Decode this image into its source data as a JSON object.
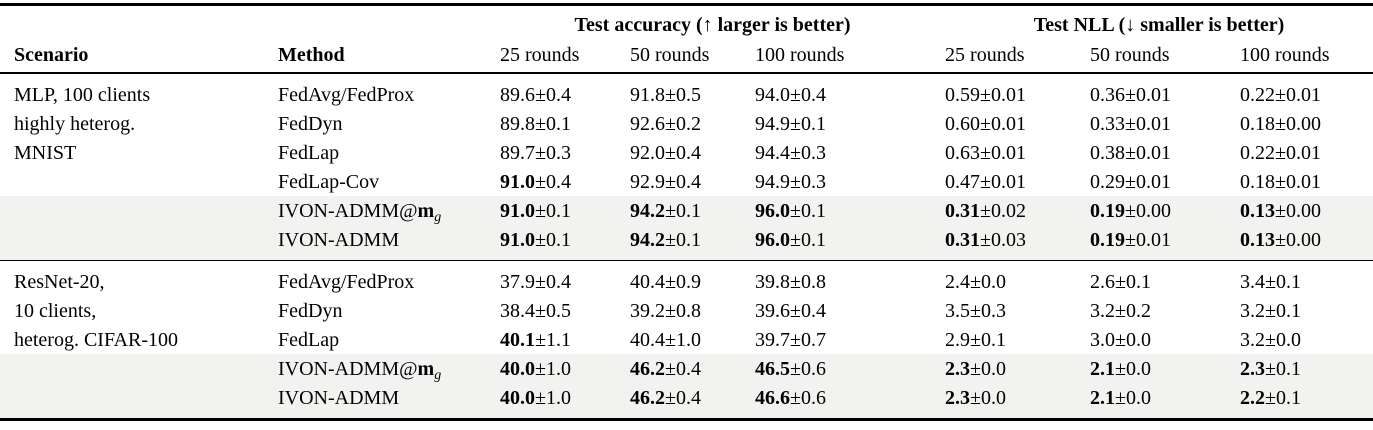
{
  "page": {
    "background": "#ffffff",
    "text_color": "#000000",
    "highlight_color": "#f2f2f1"
  },
  "table": {
    "headers": {
      "scenario": "Scenario",
      "method": "Method",
      "groups": [
        {
          "label": "Test accuracy (↑ larger is better)"
        },
        {
          "label": "Test NLL (↓ smaller is better)"
        }
      ],
      "round_cols": [
        "25 rounds",
        "50 rounds",
        "100 rounds",
        "25 rounds",
        "50 rounds",
        "100 rounds"
      ]
    },
    "blocks": [
      {
        "scenario_lines": [
          "MLP, 100 clients",
          "highly heterog.",
          "MNIST"
        ],
        "rows": [
          {
            "method": {
              "text": "FedAvg/FedProx"
            },
            "highlight": false,
            "cells": [
              {
                "v": "89.6",
                "pm": "±0.4",
                "b": false
              },
              {
                "v": "91.8",
                "pm": "±0.5",
                "b": false
              },
              {
                "v": "94.0",
                "pm": "±0.4",
                "b": false
              },
              {
                "v": "0.59",
                "pm": "±0.01",
                "b": false
              },
              {
                "v": "0.36",
                "pm": "±0.01",
                "b": false
              },
              {
                "v": "0.22",
                "pm": "±0.01",
                "b": false
              }
            ]
          },
          {
            "method": {
              "text": "FedDyn"
            },
            "highlight": false,
            "cells": [
              {
                "v": "89.8",
                "pm": "±0.1",
                "b": false
              },
              {
                "v": "92.6",
                "pm": "±0.2",
                "b": false
              },
              {
                "v": "94.9",
                "pm": "±0.1",
                "b": false
              },
              {
                "v": "0.60",
                "pm": "±0.01",
                "b": false
              },
              {
                "v": "0.33",
                "pm": "±0.01",
                "b": false
              },
              {
                "v": "0.18",
                "pm": "±0.00",
                "b": false
              }
            ]
          },
          {
            "method": {
              "text": "FedLap"
            },
            "highlight": false,
            "cells": [
              {
                "v": "89.7",
                "pm": "±0.3",
                "b": false
              },
              {
                "v": "92.0",
                "pm": "±0.4",
                "b": false
              },
              {
                "v": "94.4",
                "pm": "±0.3",
                "b": false
              },
              {
                "v": "0.63",
                "pm": "±0.01",
                "b": false
              },
              {
                "v": "0.38",
                "pm": "±0.01",
                "b": false
              },
              {
                "v": "0.22",
                "pm": "±0.01",
                "b": false
              }
            ]
          },
          {
            "method": {
              "text": "FedLap-Cov"
            },
            "highlight": false,
            "cells": [
              {
                "v": "91.0",
                "pm": "±0.4",
                "b": true
              },
              {
                "v": "92.9",
                "pm": "±0.4",
                "b": false
              },
              {
                "v": "94.9",
                "pm": "±0.3",
                "b": false
              },
              {
                "v": "0.47",
                "pm": "±0.01",
                "b": false
              },
              {
                "v": "0.29",
                "pm": "±0.01",
                "b": false
              },
              {
                "v": "0.18",
                "pm": "±0.01",
                "b": false
              }
            ]
          },
          {
            "method": {
              "text": "IVON-ADMM@",
              "math": "m",
              "sub": "g"
            },
            "highlight": true,
            "cells": [
              {
                "v": "91.0",
                "pm": "±0.1",
                "b": true
              },
              {
                "v": "94.2",
                "pm": "±0.1",
                "b": true
              },
              {
                "v": "96.0",
                "pm": "±0.1",
                "b": true
              },
              {
                "v": "0.31",
                "pm": "±0.02",
                "b": true
              },
              {
                "v": "0.19",
                "pm": "±0.00",
                "b": true
              },
              {
                "v": "0.13",
                "pm": "±0.00",
                "b": true
              }
            ]
          },
          {
            "method": {
              "text": "IVON-ADMM"
            },
            "highlight": true,
            "cells": [
              {
                "v": "91.0",
                "pm": "±0.1",
                "b": true
              },
              {
                "v": "94.2",
                "pm": "±0.1",
                "b": true
              },
              {
                "v": "96.0",
                "pm": "±0.1",
                "b": true
              },
              {
                "v": "0.31",
                "pm": "±0.03",
                "b": true
              },
              {
                "v": "0.19",
                "pm": "±0.01",
                "b": true
              },
              {
                "v": "0.13",
                "pm": "±0.00",
                "b": true
              }
            ]
          }
        ]
      },
      {
        "scenario_lines": [
          "ResNet-20,",
          "10 clients,",
          "heterog. CIFAR-100"
        ],
        "rows": [
          {
            "method": {
              "text": "FedAvg/FedProx"
            },
            "highlight": false,
            "cells": [
              {
                "v": "37.9",
                "pm": "±0.4",
                "b": false
              },
              {
                "v": "40.4",
                "pm": "±0.9",
                "b": false
              },
              {
                "v": "39.8",
                "pm": "±0.8",
                "b": false
              },
              {
                "v": "2.4",
                "pm": "±0.0",
                "b": false
              },
              {
                "v": "2.6",
                "pm": "±0.1",
                "b": false
              },
              {
                "v": "3.4",
                "pm": "±0.1",
                "b": false
              }
            ]
          },
          {
            "method": {
              "text": "FedDyn"
            },
            "highlight": false,
            "cells": [
              {
                "v": "38.4",
                "pm": "±0.5",
                "b": false
              },
              {
                "v": "39.2",
                "pm": "±0.8",
                "b": false
              },
              {
                "v": "39.6",
                "pm": "±0.4",
                "b": false
              },
              {
                "v": "3.5",
                "pm": "±0.3",
                "b": false
              },
              {
                "v": "3.2",
                "pm": "±0.2",
                "b": false
              },
              {
                "v": "3.2",
                "pm": "±0.1",
                "b": false
              }
            ]
          },
          {
            "method": {
              "text": "FedLap"
            },
            "highlight": false,
            "cells": [
              {
                "v": "40.1",
                "pm": "±1.1",
                "b": true
              },
              {
                "v": "40.4",
                "pm": "±1.0",
                "b": false
              },
              {
                "v": "39.7",
                "pm": "±0.7",
                "b": false
              },
              {
                "v": "2.9",
                "pm": "±0.1",
                "b": false
              },
              {
                "v": "3.0",
                "pm": "±0.0",
                "b": false
              },
              {
                "v": "3.2",
                "pm": "±0.0",
                "b": false
              }
            ]
          },
          {
            "method": {
              "text": "IVON-ADMM@",
              "math": "m",
              "sub": "g"
            },
            "highlight": true,
            "cells": [
              {
                "v": "40.0",
                "pm": "±1.0",
                "b": true
              },
              {
                "v": "46.2",
                "pm": "±0.4",
                "b": true
              },
              {
                "v": "46.5",
                "pm": "±0.6",
                "b": true
              },
              {
                "v": "2.3",
                "pm": "±0.0",
                "b": true
              },
              {
                "v": "2.1",
                "pm": "±0.0",
                "b": true
              },
              {
                "v": "2.3",
                "pm": "±0.1",
                "b": true
              }
            ]
          },
          {
            "method": {
              "text": "IVON-ADMM"
            },
            "highlight": true,
            "cells": [
              {
                "v": "40.0",
                "pm": "±1.0",
                "b": true
              },
              {
                "v": "46.2",
                "pm": "±0.4",
                "b": true
              },
              {
                "v": "46.6",
                "pm": "±0.6",
                "b": true
              },
              {
                "v": "2.3",
                "pm": "±0.0",
                "b": true
              },
              {
                "v": "2.1",
                "pm": "±0.0",
                "b": true
              },
              {
                "v": "2.2",
                "pm": "±0.1",
                "b": true
              }
            ]
          }
        ]
      }
    ]
  }
}
